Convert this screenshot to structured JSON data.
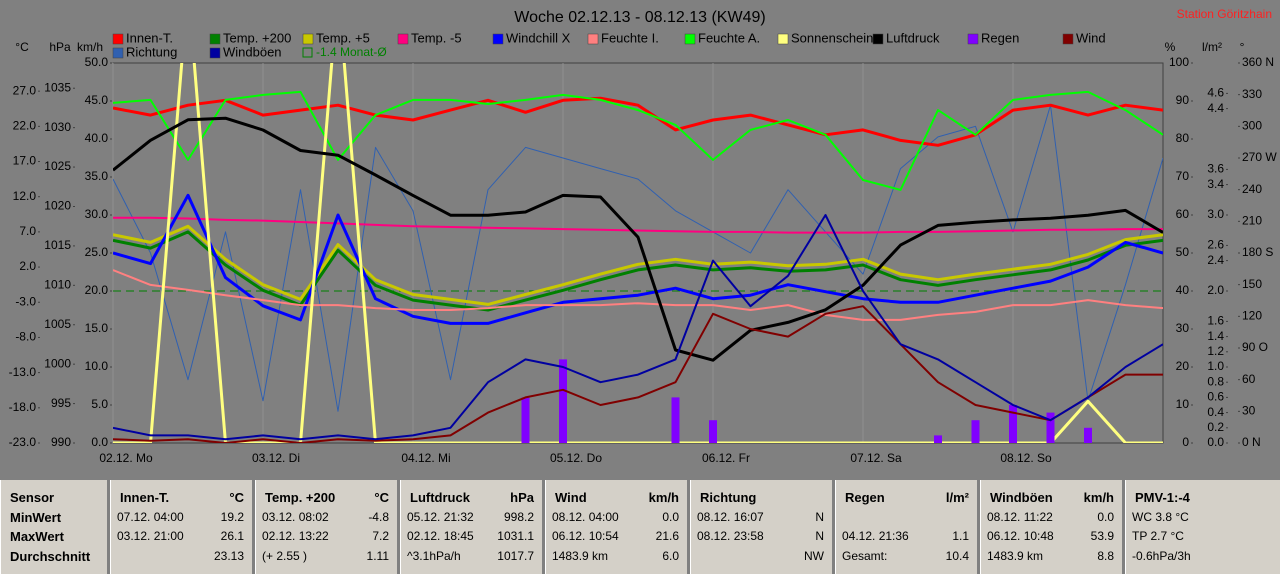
{
  "chart_data": {
    "type": "line",
    "title": "Woche 02.12.13 - 08.12.13 (KW49)",
    "station": "Station Göritzhain",
    "xlim": [
      0,
      168
    ],
    "xticks": [
      {
        "value": 0,
        "label": "02.12. Mo"
      },
      {
        "value": 24,
        "label": "03.12. Di"
      },
      {
        "value": 48,
        "label": "04.12. Mi"
      },
      {
        "value": 72,
        "label": "05.12. Do"
      },
      {
        "value": 96,
        "label": "06.12. Fr"
      },
      {
        "value": 120,
        "label": "07.12. Sa"
      },
      {
        "value": 144,
        "label": "08.12. So"
      }
    ],
    "grid": true,
    "x": [
      0,
      6,
      12,
      18,
      24,
      30,
      36,
      42,
      48,
      54,
      60,
      66,
      72,
      78,
      84,
      90,
      96,
      102,
      108,
      114,
      120,
      126,
      132,
      138,
      144,
      150,
      156,
      162,
      168
    ],
    "axes": [
      {
        "label": "°C",
        "lim": [
          -23,
          31
        ],
        "ticks": [
          {
            "value": 27,
            "label": "27.0"
          },
          {
            "value": 22,
            "label": "22.0"
          },
          {
            "value": 17,
            "label": "17.0"
          },
          {
            "value": 12,
            "label": "12.0"
          },
          {
            "value": 7,
            "label": "7.0"
          },
          {
            "value": 2,
            "label": "2.0"
          },
          {
            "value": -3,
            "label": "-3.0"
          },
          {
            "value": -8,
            "label": "-8.0"
          },
          {
            "value": -13,
            "label": "-13.0"
          },
          {
            "value": -18,
            "label": "-18.0"
          },
          {
            "value": -23,
            "label": "-23.0"
          }
        ]
      },
      {
        "label": "hPa",
        "lim": [
          990,
          1038.2
        ],
        "ticks": [
          1035,
          1030,
          1025,
          1020,
          1015,
          1010,
          1005,
          1000,
          995,
          990
        ]
      },
      {
        "label": "km/h",
        "lim": [
          0,
          50
        ],
        "ticks": [
          {
            "value": 50,
            "label": "50.0"
          },
          {
            "value": 45,
            "label": "45.0"
          },
          {
            "value": 40,
            "label": "40.0"
          },
          {
            "value": 35,
            "label": "35.0"
          },
          {
            "value": 30,
            "label": "30.0"
          },
          {
            "value": 25,
            "label": "25.0"
          },
          {
            "value": 20,
            "label": "20.0"
          },
          {
            "value": 15,
            "label": "15.0"
          },
          {
            "value": 10,
            "label": "10.0"
          },
          {
            "value": 5,
            "label": "5.0"
          },
          {
            "value": 0,
            "label": "0.0"
          }
        ]
      },
      {
        "label": "%",
        "lim": [
          0,
          100
        ],
        "ticks": [
          100,
          90,
          80,
          70,
          60,
          50,
          40,
          30,
          20,
          10,
          0
        ]
      },
      {
        "label": "l/m²",
        "lim": [
          0,
          5
        ],
        "ticks": [
          {
            "value": 4.6,
            "label": "4.6"
          },
          {
            "value": 4.4,
            "label": "4.4"
          },
          {
            "value": 3.6,
            "label": "3.6"
          },
          {
            "value": 3.4,
            "label": "3.4"
          },
          {
            "value": 3,
            "label": "3.0"
          },
          {
            "value": 2.6,
            "label": "2.6"
          },
          {
            "value": 2.4,
            "label": "2.4"
          },
          {
            "value": 2,
            "label": "2.0"
          },
          {
            "value": 1.6,
            "label": "1.6"
          },
          {
            "value": 1.4,
            "label": "1.4"
          },
          {
            "value": 1.2,
            "label": "1.2"
          },
          {
            "value": 1,
            "label": "1.0"
          },
          {
            "value": 0.8,
            "label": "0.8"
          },
          {
            "value": 0.6,
            "label": "0.6"
          },
          {
            "value": 0.4,
            "label": "0.4"
          },
          {
            "value": 0.2,
            "label": "0.2"
          },
          {
            "value": 0,
            "label": "0.0"
          }
        ]
      },
      {
        "label": "°",
        "lim": [
          0,
          360
        ],
        "ticks": [
          {
            "value": 360,
            "label": "360 N"
          },
          {
            "value": 330,
            "label": "330"
          },
          {
            "value": 300,
            "label": "300"
          },
          {
            "value": 270,
            "label": "270 W"
          },
          {
            "value": 240,
            "label": "240"
          },
          {
            "value": 210,
            "label": "210"
          },
          {
            "value": 180,
            "label": "180 S"
          },
          {
            "value": 150,
            "label": "150"
          },
          {
            "value": 120,
            "label": "120"
          },
          {
            "value": 90,
            "label": "90 O"
          },
          {
            "value": 60,
            "label": "60"
          },
          {
            "value": 30,
            "label": "30"
          },
          {
            "value": 0,
            "label": "0 N"
          }
        ]
      }
    ],
    "monthly_avg": {
      "label": "-1.4 Monat-Ø",
      "value": -1.4,
      "color": "#008000"
    },
    "series": [
      {
        "name": "Innen-T.",
        "color": "#ff0000",
        "axis": 0,
        "width": 3,
        "values": [
          24.6,
          23.6,
          25.0,
          25.7,
          23.6,
          24.3,
          25.0,
          23.6,
          22.9,
          24.3,
          25.7,
          24.0,
          25.7,
          26.0,
          25.0,
          21.5,
          22.9,
          23.6,
          22.2,
          20.8,
          21.5,
          20.0,
          19.3,
          20.8,
          24.3,
          25.0,
          23.6,
          25.0,
          24.3
        ]
      },
      {
        "name": "Temp. +200",
        "color": "#008000",
        "axis": 0,
        "width": 3,
        "values": [
          5.8,
          4.7,
          7.0,
          2.3,
          -1.3,
          -3.4,
          4.4,
          -0.6,
          -2.7,
          -3.4,
          -4.1,
          -2.7,
          -1.3,
          0.2,
          1.6,
          2.3,
          1.6,
          1.9,
          1.4,
          1.6,
          2.3,
          0.2,
          -0.6,
          0.2,
          0.9,
          1.6,
          3.0,
          5.1,
          5.8
        ]
      },
      {
        "name": "Temp. +5",
        "color": "#c8c800",
        "axis": 0,
        "width": 3,
        "values": [
          6.6,
          5.5,
          7.8,
          3.1,
          -0.5,
          -2.6,
          5.2,
          0.2,
          -1.9,
          -2.6,
          -3.3,
          -1.9,
          -0.5,
          1.0,
          2.4,
          3.1,
          2.4,
          2.7,
          2.2,
          2.4,
          3.1,
          1.0,
          0.2,
          1.0,
          1.7,
          2.4,
          3.8,
          5.9,
          6.6
        ]
      },
      {
        "name": "Temp. -5",
        "color": "#ff0080",
        "axis": 0,
        "width": 2,
        "values": [
          9.0,
          9.0,
          8.9,
          8.7,
          8.6,
          8.4,
          8.2,
          8.0,
          7.8,
          7.7,
          7.6,
          7.5,
          7.4,
          7.3,
          7.2,
          7.1,
          7.0,
          7.0,
          6.9,
          6.9,
          6.9,
          7.0,
          7.0,
          7.1,
          7.2,
          7.3,
          7.3,
          7.4,
          7.4
        ]
      },
      {
        "name": "Windchill X",
        "color": "#0000ff",
        "axis": 0,
        "width": 3,
        "values": [
          4.0,
          2.5,
          12.2,
          0.5,
          -3.5,
          -5.5,
          9.4,
          -2.5,
          -5.0,
          -6.0,
          -6.0,
          -4.5,
          -3.0,
          -2.5,
          -2.0,
          -1.0,
          -2.5,
          -2.0,
          -0.5,
          -1.5,
          -2.5,
          -3.0,
          -3.0,
          -2.0,
          -1.0,
          0.0,
          2.0,
          5.5,
          4.0
        ]
      },
      {
        "name": "Feuchte I.",
        "color": "#ff8080",
        "axis": 3,
        "width": 2,
        "values": [
          45.5,
          41.6,
          40.3,
          38.9,
          37.6,
          36.3,
          36.3,
          35.5,
          35.0,
          35.0,
          35.5,
          36.3,
          36.3,
          36.3,
          36.8,
          36.3,
          36.3,
          35.0,
          36.3,
          33.7,
          32.4,
          32.4,
          33.7,
          34.5,
          36.3,
          36.3,
          37.6,
          36.3,
          35.5
        ]
      },
      {
        "name": "Feuchte A.",
        "color": "#00ff00",
        "axis": 3,
        "width": 2,
        "values": [
          89.5,
          90.3,
          74.5,
          90.3,
          91.6,
          92.4,
          74.5,
          86.3,
          90.3,
          90.3,
          89.2,
          90.3,
          91.6,
          90.3,
          87.6,
          83.7,
          74.5,
          82.4,
          85.0,
          81.1,
          69.2,
          66.6,
          87.6,
          81.1,
          90.3,
          91.6,
          92.4,
          87.6,
          81.1
        ]
      },
      {
        "name": "Sonnenschein",
        "color": "#ffff80",
        "axis": 3,
        "width": 3,
        "values": [
          0,
          0,
          120,
          0,
          0,
          0,
          120,
          0,
          0,
          0,
          0,
          0,
          0,
          0,
          0,
          0,
          0,
          0,
          0,
          0,
          0,
          0,
          0,
          0,
          0,
          0,
          11,
          0,
          0
        ]
      },
      {
        "name": "Luftdruck",
        "color": "#000000",
        "axis": 1,
        "width": 3,
        "values": [
          1024.6,
          1028.4,
          1031.0,
          1031.2,
          1029.7,
          1027.1,
          1026.5,
          1024.0,
          1021.4,
          1018.9,
          1018.9,
          1019.3,
          1021.4,
          1021.2,
          1016.1,
          1001.8,
          1000.5,
          1004.3,
          1005.3,
          1006.9,
          1010.0,
          1015.1,
          1017.6,
          1018.0,
          1018.3,
          1018.5,
          1018.9,
          1019.5,
          1016.7
        ]
      },
      {
        "name": "Regen",
        "type": "bar",
        "color": "#8000ff",
        "axis": 4,
        "values": [
          0,
          0,
          0,
          0,
          0,
          0,
          0,
          0,
          0,
          0,
          0,
          0.6,
          1.1,
          0,
          0,
          0.6,
          0.3,
          0,
          0,
          0,
          0,
          0,
          0.1,
          0.3,
          0.5,
          0.4,
          0.2,
          0,
          0
        ]
      },
      {
        "name": "Wind",
        "color": "#800000",
        "axis": 2,
        "width": 2,
        "values": [
          0.5,
          0.3,
          0.5,
          0,
          0.5,
          0,
          0.5,
          0.3,
          0.5,
          1.0,
          4,
          6,
          7,
          5,
          6,
          8,
          17,
          15,
          14,
          17,
          18,
          13,
          8,
          5,
          4,
          3,
          6,
          9,
          9
        ]
      },
      {
        "name": "Richtung",
        "color": "#3060b0",
        "axis": 5,
        "width": 1,
        "values": [
          250,
          180,
          60,
          200,
          40,
          240,
          30,
          280,
          220,
          60,
          240,
          280,
          270,
          260,
          250,
          220,
          200,
          180,
          240,
          200,
          160,
          260,
          290,
          300,
          200,
          320,
          40,
          150,
          270
        ]
      },
      {
        "name": "Windböen",
        "color": "#0000a0",
        "axis": 2,
        "width": 2,
        "values": [
          2,
          1,
          1,
          0.5,
          1,
          0.5,
          1,
          0.5,
          1,
          2,
          8,
          11,
          10,
          8,
          9,
          11,
          24,
          18,
          22,
          30,
          20,
          13,
          11,
          8,
          5,
          3,
          6,
          10,
          13
        ]
      }
    ]
  },
  "table": {
    "columns": [
      {
        "header": "Sensor",
        "rows": [
          {
            "left": "MinWert"
          },
          {
            "left": "MaxWert"
          },
          {
            "left": "Durchschnitt"
          }
        ]
      },
      {
        "header": "Innen-T.",
        "unit": "°C",
        "rows": [
          {
            "left": "07.12. 04:00",
            "right": "19.2"
          },
          {
            "left": "03.12. 21:00",
            "right": "26.1"
          },
          {
            "right": "23.13"
          }
        ]
      },
      {
        "header": "Temp. +200",
        "unit": "°C",
        "rows": [
          {
            "left": "03.12. 08:02",
            "right": "-4.8"
          },
          {
            "left": "02.12. 13:22",
            "right": "7.2"
          },
          {
            "left": "(+ 2.55 )",
            "right": "1.11"
          }
        ]
      },
      {
        "header": "Luftdruck",
        "unit": "hPa",
        "rows": [
          {
            "left": "05.12. 21:32",
            "right": "998.2"
          },
          {
            "left": "02.12. 18:45",
            "right": "1031.1"
          },
          {
            "left": "^3.1hPa/h",
            "right": "1017.7"
          }
        ]
      },
      {
        "header": "Wind",
        "unit": "km/h",
        "rows": [
          {
            "left": "08.12. 04:00",
            "right": "0.0"
          },
          {
            "left": "06.12. 10:54",
            "right": "21.6"
          },
          {
            "left": "1483.9 km",
            "right": "6.0"
          }
        ]
      },
      {
        "header": "Richtung",
        "rows": [
          {
            "left": "08.12. 16:07",
            "right": "N"
          },
          {
            "left": "08.12. 23:58",
            "right": "N"
          },
          {
            "right": "NW"
          }
        ]
      },
      {
        "header": "Regen",
        "unit": "l/m²",
        "rows": [
          null,
          {
            "left": "04.12. 21:36",
            "right": "1.1"
          },
          {
            "left": "Gesamt:",
            "right": "10.4"
          }
        ]
      },
      {
        "header": "Windböen",
        "unit": "km/h",
        "rows": [
          {
            "left": "08.12. 11:22",
            "right": "0.0"
          },
          {
            "left": "06.12. 10:48",
            "right": "53.9"
          },
          {
            "left": "1483.9 km",
            "right": "8.8"
          }
        ]
      },
      {
        "header": "PMV-1:-4",
        "rows": [
          {
            "left": "WC 3.8 °C"
          },
          {
            "left": "TP 2.7 °C"
          },
          {
            "left": "-0.6hPa/3h"
          }
        ]
      }
    ]
  }
}
